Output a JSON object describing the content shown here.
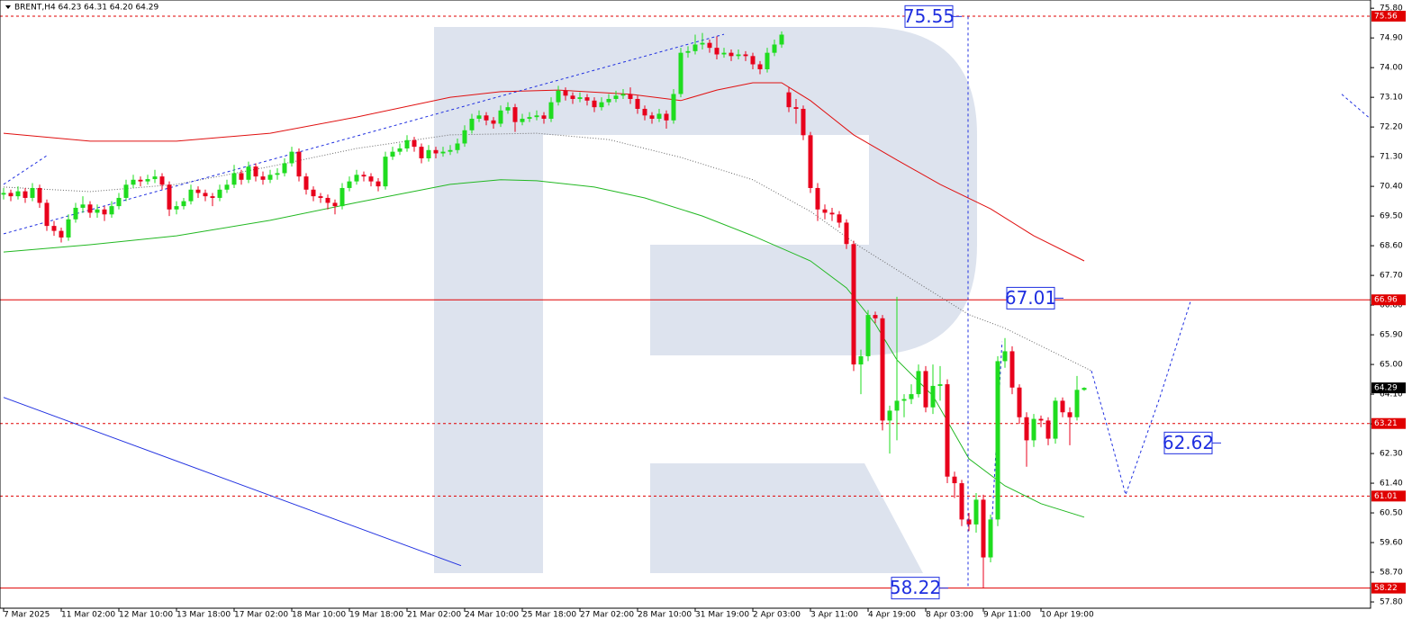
{
  "chart_data": {
    "type": "candlestick",
    "title": "BRENT,H4 64.23 64.31 64.20 64.29",
    "up_color": "#1fdc1f",
    "down_color": "#e8001c",
    "xlim": [
      -0.5,
      189.75
    ],
    "xticks": [
      {
        "value": 0,
        "label": "7 Mar 2025"
      },
      {
        "value": 8,
        "label": "11 Mar 02:00"
      },
      {
        "value": 16,
        "label": "12 Mar 10:00"
      },
      {
        "value": 24,
        "label": "13 Mar 18:00"
      },
      {
        "value": 32,
        "label": "17 Mar 02:00"
      },
      {
        "value": 40,
        "label": "18 Mar 10:00"
      },
      {
        "value": 48,
        "label": "19 Mar 18:00"
      },
      {
        "value": 56,
        "label": "21 Mar 02:00"
      },
      {
        "value": 64,
        "label": "24 Mar 10:00"
      },
      {
        "value": 72,
        "label": "25 Mar 18:00"
      },
      {
        "value": 80,
        "label": "27 Mar 02:00"
      },
      {
        "value": 88,
        "label": "28 Mar 10:00"
      },
      {
        "value": 96,
        "label": "31 Mar 19:00"
      },
      {
        "value": 104,
        "label": "2 Apr 03:00"
      },
      {
        "value": 112,
        "label": "3 Apr 11:00"
      },
      {
        "value": 120,
        "label": "4 Apr 19:00"
      },
      {
        "value": 128,
        "label": "8 Apr 03:00"
      },
      {
        "value": 136,
        "label": "9 Apr 11:00"
      },
      {
        "value": 144,
        "label": "10 Apr 19:00"
      }
    ],
    "ylim": [
      57.61,
      76.05
    ],
    "yticks": [
      {
        "value": 75.8,
        "label": "75.80"
      },
      {
        "value": 74.9,
        "label": "74.90"
      },
      {
        "value": 74,
        "label": "74.00"
      },
      {
        "value": 73.1,
        "label": "73.10"
      },
      {
        "value": 72.2,
        "label": "72.20"
      },
      {
        "value": 71.3,
        "label": "71.30"
      },
      {
        "value": 70.4,
        "label": "70.40"
      },
      {
        "value": 69.5,
        "label": "69.50"
      },
      {
        "value": 68.6,
        "label": "68.60"
      },
      {
        "value": 67.7,
        "label": "67.70"
      },
      {
        "value": 66.8,
        "label": "66.80"
      },
      {
        "value": 65.9,
        "label": "65.90"
      },
      {
        "value": 65,
        "label": "65.00"
      },
      {
        "value": 64.1,
        "label": "64.10"
      },
      {
        "value": 63.2,
        "label": "63.20"
      },
      {
        "value": 62.3,
        "label": "62.30"
      },
      {
        "value": 61.4,
        "label": "61.40"
      },
      {
        "value": 60.5,
        "label": "60.50"
      },
      {
        "value": 59.6,
        "label": "59.60"
      },
      {
        "value": 58.7,
        "label": "58.70"
      },
      {
        "value": 57.8,
        "label": "57.80"
      }
    ],
    "open": [
      70.15,
      70.2,
      70.1,
      70.25,
      70.05,
      70.35,
      69.9,
      69.2,
      69.05,
      68.85,
      69.4,
      69.75,
      69.85,
      69.6,
      69.7,
      69.55,
      69.8,
      70.05,
      70.45,
      70.6,
      70.55,
      70.62,
      70.7,
      70.45,
      69.7,
      69.8,
      69.95,
      70.3,
      70.2,
      70.1,
      70.05,
      70.3,
      70.45,
      70.8,
      70.6,
      71.0,
      70.7,
      70.6,
      70.75,
      70.8,
      71.1,
      71.45,
      70.7,
      70.3,
      70.1,
      70.05,
      69.9,
      69.8,
      70.35,
      70.55,
      70.75,
      70.7,
      70.55,
      70.4,
      71.3,
      71.45,
      71.55,
      71.8,
      71.6,
      71.25,
      71.5,
      71.4,
      71.45,
      71.5,
      71.7,
      72.1,
      72.45,
      72.55,
      72.4,
      72.3,
      72.7,
      72.8,
      72.35,
      72.45,
      72.5,
      72.55,
      72.45,
      72.95,
      73.3,
      73.15,
      73.05,
      73.1,
      73.0,
      72.8,
      72.95,
      73.05,
      73.15,
      73.2,
      73.05,
      72.75,
      72.55,
      72.45,
      72.6,
      72.4,
      73.2,
      74.45,
      74.5,
      74.7,
      74.75,
      74.6,
      74.4,
      74.45,
      74.35,
      74.4,
      74.35,
      74.1,
      73.95,
      74.45,
      74.7,
      73.25,
      72.8,
      72.75,
      71.95,
      70.35,
      69.7,
      69.6,
      69.55,
      69.3,
      68.65,
      65.0,
      65.25,
      66.5,
      66.4,
      63.3,
      63.6,
      63.9,
      63.95,
      64.1,
      64.8,
      63.7,
      64.35,
      64.4,
      61.6,
      61.4,
      60.3,
      60.15,
      60.9,
      59.15,
      60.3,
      65.1,
      65.4,
      64.3,
      63.4,
      62.7,
      63.35,
      63.3,
      62.75,
      63.9,
      63.55,
      63.4,
      64.23
    ],
    "high": [
      70.35,
      70.3,
      70.4,
      70.35,
      70.5,
      70.45,
      70.0,
      69.35,
      69.15,
      69.55,
      69.9,
      70.1,
      69.95,
      69.85,
      69.8,
      69.95,
      70.2,
      70.6,
      70.75,
      70.7,
      70.75,
      70.9,
      70.8,
      70.55,
      69.95,
      70.05,
      70.45,
      70.4,
      70.3,
      70.2,
      70.45,
      70.6,
      71.05,
      70.9,
      71.15,
      71.1,
      70.85,
      70.9,
      70.95,
      71.25,
      71.6,
      71.55,
      70.8,
      70.4,
      70.2,
      70.15,
      70.0,
      70.5,
      70.7,
      70.9,
      70.85,
      70.8,
      70.65,
      71.45,
      71.6,
      71.7,
      71.95,
      71.9,
      71.7,
      71.65,
      71.6,
      71.6,
      71.65,
      71.85,
      72.25,
      72.6,
      72.7,
      72.65,
      72.5,
      72.85,
      72.95,
      72.9,
      72.6,
      72.65,
      72.7,
      72.65,
      73.1,
      73.45,
      73.4,
      73.25,
      73.25,
      73.2,
      73.1,
      73.1,
      73.2,
      73.3,
      73.35,
      73.4,
      73.15,
      72.85,
      72.65,
      72.75,
      72.7,
      73.35,
      74.6,
      74.65,
      75.0,
      75.05,
      74.85,
      74.95,
      74.6,
      74.55,
      74.55,
      74.5,
      74.45,
      74.2,
      74.6,
      74.85,
      75.1,
      73.4,
      73.05,
      72.85,
      72.05,
      70.5,
      69.85,
      69.75,
      69.65,
      69.4,
      68.75,
      65.45,
      66.65,
      66.6,
      66.5,
      63.75,
      67.05,
      64.1,
      64.4,
      65.0,
      64.95,
      65.0,
      64.95,
      64.55,
      61.75,
      61.5,
      60.5,
      61.1,
      61.05,
      60.45,
      65.25,
      65.8,
      65.55,
      64.4,
      63.55,
      63.5,
      63.45,
      63.4,
      64.0,
      64.0,
      63.7,
      64.65,
      64.31
    ],
    "low": [
      70.0,
      69.95,
      70.0,
      69.9,
      69.95,
      69.75,
      69.05,
      68.9,
      68.7,
      68.75,
      69.3,
      69.6,
      69.45,
      69.45,
      69.35,
      69.45,
      69.7,
      69.95,
      70.35,
      70.4,
      70.45,
      70.5,
      70.3,
      69.5,
      69.55,
      69.7,
      69.85,
      70.05,
      69.95,
      69.8,
      69.95,
      70.2,
      70.35,
      70.45,
      70.5,
      70.55,
      70.45,
      70.5,
      70.6,
      70.7,
      71.0,
      70.55,
      70.15,
      69.95,
      69.9,
      69.7,
      69.55,
      69.7,
      70.25,
      70.45,
      70.55,
      70.4,
      70.25,
      70.3,
      71.2,
      71.35,
      71.45,
      71.45,
      71.1,
      71.15,
      71.25,
      71.3,
      71.35,
      71.4,
      71.6,
      72.0,
      72.35,
      72.25,
      72.15,
      72.2,
      72.6,
      72.05,
      72.25,
      72.35,
      72.4,
      72.3,
      72.35,
      72.85,
      73.0,
      72.9,
      72.95,
      72.85,
      72.65,
      72.7,
      72.85,
      72.95,
      73.05,
      72.9,
      72.6,
      72.4,
      72.3,
      72.35,
      72.15,
      72.3,
      73.1,
      74.3,
      74.4,
      74.55,
      74.45,
      74.25,
      74.3,
      74.2,
      74.25,
      74.2,
      73.95,
      73.8,
      73.85,
      74.35,
      74.6,
      72.65,
      72.3,
      71.8,
      70.2,
      69.35,
      69.4,
      69.35,
      69.15,
      68.5,
      64.8,
      64.1,
      65.1,
      66.25,
      63.0,
      62.3,
      62.7,
      63.4,
      63.8,
      64.0,
      63.55,
      63.5,
      63.9,
      61.4,
      60.95,
      60.1,
      59.95,
      59.9,
      58.22,
      59.0,
      60.1,
      64.9,
      64.1,
      63.2,
      61.9,
      62.5,
      63.1,
      62.55,
      62.6,
      63.4,
      62.55,
      63.3,
      64.2
    ],
    "close": [
      70.2,
      70.1,
      70.25,
      70.05,
      70.35,
      69.9,
      69.2,
      69.05,
      68.85,
      69.4,
      69.75,
      69.85,
      69.6,
      69.7,
      69.55,
      69.8,
      70.05,
      70.45,
      70.6,
      70.55,
      70.62,
      70.7,
      70.45,
      69.7,
      69.8,
      69.95,
      70.3,
      70.2,
      70.1,
      70.05,
      70.3,
      70.45,
      70.8,
      70.6,
      71.0,
      70.7,
      70.6,
      70.75,
      70.8,
      71.1,
      71.45,
      70.7,
      70.3,
      70.1,
      70.05,
      69.9,
      69.8,
      70.35,
      70.55,
      70.75,
      70.7,
      70.55,
      70.4,
      71.3,
      71.45,
      71.55,
      71.8,
      71.6,
      71.25,
      71.5,
      71.4,
      71.45,
      71.5,
      71.7,
      72.1,
      72.45,
      72.55,
      72.4,
      72.3,
      72.7,
      72.8,
      72.35,
      72.45,
      72.5,
      72.55,
      72.45,
      72.95,
      73.3,
      73.15,
      73.05,
      73.1,
      73.0,
      72.8,
      72.95,
      73.05,
      73.15,
      73.2,
      73.05,
      72.75,
      72.55,
      72.45,
      72.6,
      72.4,
      73.2,
      74.45,
      74.5,
      74.7,
      74.75,
      74.6,
      74.4,
      74.45,
      74.35,
      74.4,
      74.35,
      74.1,
      73.95,
      74.45,
      74.7,
      75.0,
      72.8,
      72.75,
      71.95,
      70.35,
      69.7,
      69.6,
      69.55,
      69.3,
      68.65,
      65.0,
      65.25,
      66.5,
      66.4,
      63.3,
      63.6,
      63.9,
      63.95,
      64.1,
      64.8,
      63.7,
      64.35,
      64.4,
      61.6,
      61.4,
      60.3,
      60.15,
      60.9,
      59.15,
      60.3,
      65.1,
      65.4,
      64.3,
      63.4,
      62.7,
      63.35,
      63.3,
      62.75,
      63.9,
      63.55,
      63.4,
      64.23,
      64.29
    ],
    "lines": [
      {
        "color": "#e01010",
        "style": "solid",
        "x": [
          0,
          12,
          24,
          37,
          49,
          62,
          69,
          77,
          87,
          94,
          99,
          104,
          108,
          112,
          118,
          124,
          130,
          137,
          143,
          150
        ],
        "values": [
          72.01,
          71.77,
          71.77,
          72.01,
          72.5,
          73.1,
          73.27,
          73.32,
          73.19,
          73.0,
          73.32,
          73.54,
          73.54,
          73.0,
          71.96,
          71.2,
          70.46,
          69.72,
          68.9,
          68.14
        ]
      },
      {
        "color": "#22b822",
        "style": "solid",
        "x": [
          0,
          12,
          24,
          37,
          49,
          62,
          69,
          74,
          82,
          89,
          97,
          104,
          112,
          117,
          121,
          124,
          129,
          134,
          139,
          144,
          150
        ],
        "values": [
          68.41,
          68.63,
          68.9,
          69.37,
          69.91,
          70.46,
          70.6,
          70.57,
          70.38,
          70.05,
          69.5,
          68.9,
          68.14,
          67.32,
          66.23,
          65.14,
          64.05,
          62.14,
          61.32,
          60.78,
          60.37
        ]
      },
      {
        "color": "#666666",
        "style": "dotted",
        "x": [
          0,
          12,
          24,
          37,
          49,
          62,
          74,
          84,
          94,
          104,
          112,
          119,
          127,
          134,
          139,
          151
        ],
        "values": [
          70.38,
          70.24,
          70.46,
          71.0,
          71.55,
          71.96,
          72.01,
          71.82,
          71.28,
          70.6,
          69.64,
          68.55,
          67.46,
          66.51,
          66.1,
          64.81
        ]
      },
      {
        "color": "#1f2fe0",
        "style": "dashed",
        "x": [
          0,
          100
        ],
        "values": [
          68.96,
          75.01
        ]
      },
      {
        "color": "#1f2fe0",
        "style": "dashed",
        "x": [
          0,
          6
        ],
        "values": [
          70.46,
          71.33
        ]
      },
      {
        "color": "#1f2fe0",
        "style": "dashed",
        "x": [
          185.75,
          189.5
        ],
        "values": [
          73.19,
          72.49
        ]
      },
      {
        "color": "#1f2fe0",
        "style": "solid",
        "x": [
          0,
          63.5
        ],
        "values": [
          64.0,
          58.9
        ]
      },
      {
        "color": "#1f2fe0",
        "style": "dashed",
        "x": [
          137,
          138.6
        ],
        "values": [
          59.47,
          65.69
        ]
      },
      {
        "color": "#1f2fe0",
        "style": "dashed",
        "x": [
          151,
          153.5,
          155.75,
          160.5,
          164.75
        ],
        "values": [
          64.81,
          62.88,
          61.05,
          64.0,
          66.91
        ]
      }
    ],
    "levels": [
      {
        "value": 75.56,
        "style": "dashed",
        "color": "#e00000"
      },
      {
        "value": 66.96,
        "style": "solid",
        "color": "#e00000"
      },
      {
        "value": 64.29,
        "style": "none",
        "color": "#000000"
      },
      {
        "value": 63.21,
        "style": "dashed",
        "color": "#e00000"
      },
      {
        "value": 61.01,
        "style": "dashed",
        "color": "#e00000"
      },
      {
        "value": 58.22,
        "style": "solid",
        "color": "#e00000"
      }
    ],
    "annotations": [
      75.55,
      67.01,
      62.62,
      58.22
    ],
    "annotation_color": "#1f2fe0"
  }
}
